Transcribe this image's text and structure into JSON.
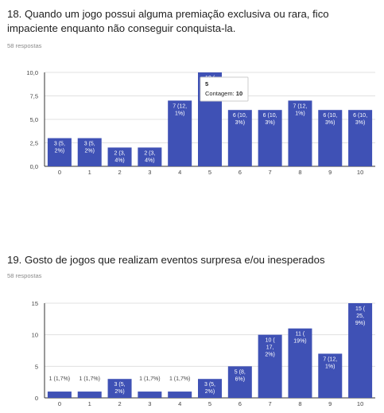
{
  "questions": [
    {
      "title": "18. Quando um jogo possui alguma premiação exclusiva ou rara, fico impaciente enquanto não conseguir conquista-la.",
      "responses": "58 respostas"
    },
    {
      "title": "19. Gosto de jogos que realizam eventos surpresa e/ou inesperados",
      "responses": "58 respostas"
    }
  ],
  "colors": {
    "bar": "#3f51b5",
    "grid": "#e0e0e0",
    "axis": "#333333",
    "label": "#ffffff"
  },
  "chart_data": [
    {
      "type": "bar",
      "categories": [
        "0",
        "1",
        "2",
        "3",
        "4",
        "5",
        "6",
        "7",
        "8",
        "9",
        "10"
      ],
      "values": [
        3,
        3,
        2,
        2,
        7,
        10,
        6,
        6,
        7,
        6,
        6
      ],
      "bar_labels": [
        "3 (5,\n2%)",
        "3 (5,\n2%)",
        "2 (3,\n4%)",
        "2 (3,\n4%)",
        "7 (12,\n1%)",
        "10 (",
        "6 (10,\n3%)",
        "6 (10,\n3%)",
        "7 (12,\n1%)",
        "6 (10,\n3%)",
        "6 (10,\n3%)"
      ],
      "y_ticks": [
        "0,0",
        "2,5",
        "5,0",
        "7,5",
        "10,0"
      ],
      "ylim": [
        0,
        10
      ],
      "grid": true,
      "tooltip": {
        "category": "5",
        "label": "Contagem:",
        "value": "10"
      }
    },
    {
      "type": "bar",
      "categories": [
        "0",
        "1",
        "2",
        "3",
        "4",
        "5",
        "6",
        "7",
        "8",
        "9",
        "10"
      ],
      "values": [
        1,
        1,
        3,
        1,
        1,
        3,
        5,
        10,
        11,
        7,
        15
      ],
      "bar_labels": [
        "1 (1,7%)",
        "1 (1,7%)",
        "3 (5,\n2%)",
        "1 (1,7%)",
        "1 (1,7%)",
        "3 (5,\n2%)",
        "5 (8,\n6%)",
        "10 (\n17,\n2%)",
        "11 (\n19%)",
        "7 (12,\n1%)",
        "15 (\n25,\n9%)"
      ],
      "y_ticks": [
        "0",
        "5",
        "10",
        "15"
      ],
      "ylim": [
        0,
        15
      ],
      "grid": true
    }
  ]
}
